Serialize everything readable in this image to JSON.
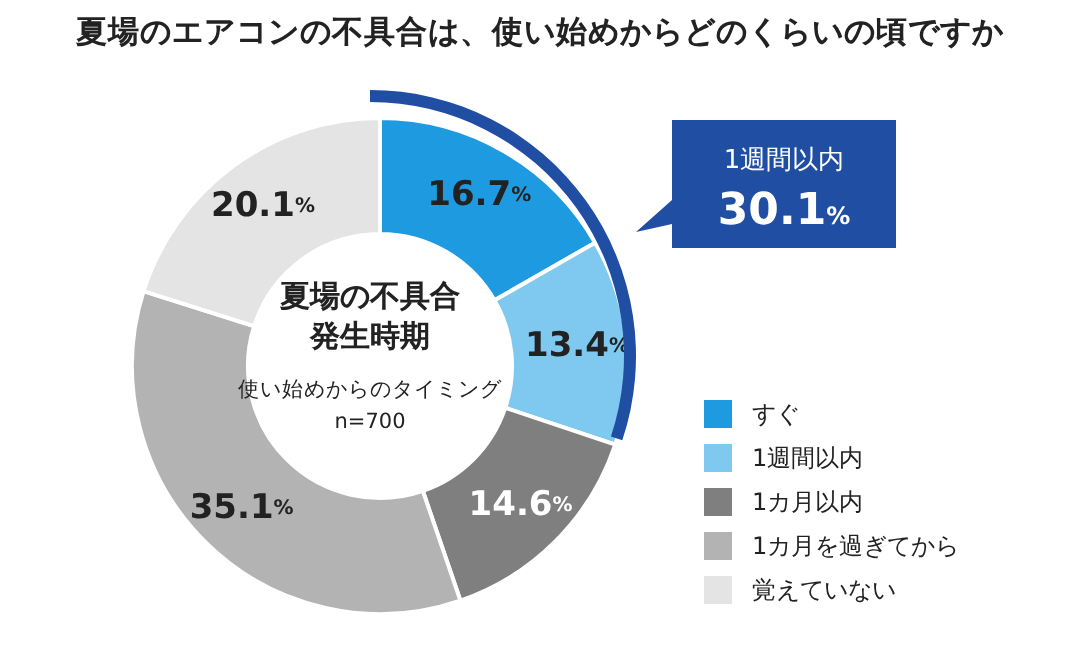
{
  "chart_data": {
    "type": "donut",
    "title": "夏場のエアコンの不具合は、使い始めからどのくらいの頃ですか",
    "subtitle": "夏場の不具合発生時期",
    "annotations": [
      "使い始めからのタイミング",
      "n=700",
      "1週間以内 30.1%"
    ],
    "categories": [
      "すぐ",
      "1週間以内",
      "1カ月以内",
      "1カ月を過ぎてから",
      "覚えていない"
    ],
    "values": [
      16.7,
      13.4,
      14.6,
      35.1,
      20.1
    ],
    "colors": [
      "#1e9be0",
      "#7fc9f1",
      "#7f7f7f",
      "#b3b3b3",
      "#e4e4e4"
    ],
    "value_labels": [
      "16.7%",
      "13.4%",
      "14.6%",
      "35.1%",
      "20.1%"
    ],
    "legend": "right"
  }
}
